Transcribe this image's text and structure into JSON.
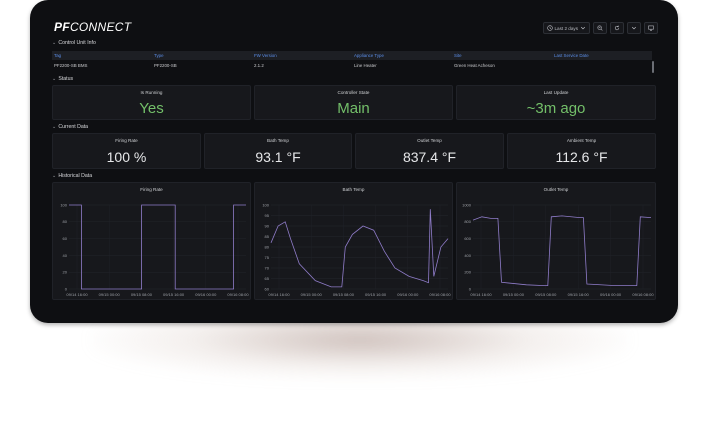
{
  "logo": {
    "pf": "PF",
    "connect": "CONNECT"
  },
  "topbar": {
    "time_range": "Last 2 days"
  },
  "sections": {
    "control_unit_info": "Control Unit Info",
    "status": "Status",
    "current_data": "Current Data",
    "historical_data": "Historical Data"
  },
  "table": {
    "headers": [
      "Tag",
      "Type",
      "FW Version",
      "Appliance Type",
      "Site",
      "Last Service Date"
    ],
    "rows": [
      [
        "PF2200-SB BMS",
        "PF2200-SB",
        "2.1.2",
        "Line Heater",
        "Green Heat Acheson",
        ""
      ]
    ]
  },
  "status": [
    {
      "title": "Is Running",
      "value": "Yes"
    },
    {
      "title": "Controller State",
      "value": "Main"
    },
    {
      "title": "Last Update",
      "value": "~3m ago"
    }
  ],
  "current": [
    {
      "title": "Firing Rate",
      "value": "100 %"
    },
    {
      "title": "Bath Temp",
      "value": "93.1 °F"
    },
    {
      "title": "Outlet Temp",
      "value": "837.4 °F"
    },
    {
      "title": "Ambient Temp",
      "value": "112.6 °F"
    }
  ],
  "colors": {
    "accent_green": "#73bf69",
    "series_purple": "#8f7cc9",
    "header_blue": "#5b8de6"
  },
  "chart_data": [
    {
      "type": "line",
      "title": "Firing Rate",
      "x_ticks": [
        "09/14 16:00",
        "09/15 00:00",
        "09/15 08:00",
        "09/15 16:00",
        "09/16 00:00",
        "09/16 08:00"
      ],
      "ylim": [
        0,
        100
      ],
      "y_ticks": [
        0,
        20,
        40,
        60,
        80,
        100
      ],
      "series": [
        {
          "x": [
            0,
            0.07,
            0.07,
            0.41,
            0.41,
            0.6,
            0.6,
            0.93,
            0.93,
            1
          ],
          "values": [
            100,
            100,
            0,
            0,
            100,
            100,
            0,
            0,
            100,
            100
          ]
        }
      ]
    },
    {
      "type": "line",
      "title": "Bath Temp",
      "x_ticks": [
        "09/14 16:00",
        "09/15 00:00",
        "09/15 08:00",
        "09/15 16:00",
        "09/16 00:00",
        "09/16 08:00"
      ],
      "ylim": [
        60,
        100
      ],
      "y_ticks": [
        60,
        65,
        70,
        75,
        80,
        85,
        90,
        95,
        100
      ],
      "series": [
        {
          "x": [
            0,
            0.04,
            0.08,
            0.11,
            0.16,
            0.25,
            0.34,
            0.4,
            0.42,
            0.46,
            0.52,
            0.58,
            0.64,
            0.7,
            0.78,
            0.86,
            0.89,
            0.9,
            0.92,
            0.96,
            1
          ],
          "values": [
            82,
            90,
            92,
            84,
            72,
            64,
            61,
            61,
            80,
            86,
            90,
            88,
            78,
            70,
            66,
            64,
            63,
            98,
            66,
            80,
            84
          ]
        }
      ]
    },
    {
      "type": "line",
      "title": "Outlet Temp",
      "x_ticks": [
        "09/14 16:00",
        "09/15 00:00",
        "09/15 08:00",
        "09/15 16:00",
        "09/16 00:00",
        "09/16 08:00"
      ],
      "ylim": [
        0,
        1000
      ],
      "y_ticks": [
        0,
        200,
        400,
        600,
        800,
        1000
      ],
      "series": [
        {
          "x": [
            0,
            0.05,
            0.1,
            0.14,
            0.16,
            0.3,
            0.4,
            0.42,
            0.44,
            0.5,
            0.6,
            0.62,
            0.64,
            0.8,
            0.9,
            0.92,
            0.94,
            1
          ],
          "values": [
            820,
            860,
            840,
            840,
            80,
            50,
            40,
            40,
            860,
            870,
            850,
            850,
            60,
            40,
            40,
            40,
            860,
            850
          ]
        }
      ]
    }
  ]
}
